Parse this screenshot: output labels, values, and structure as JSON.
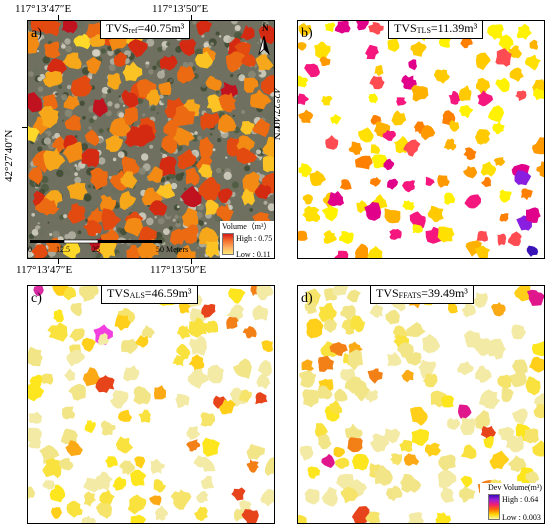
{
  "coordinates": {
    "top_left_lon": "117°13′47″E",
    "top_right_lon": "117°13′50″E",
    "bottom_left_lon": "117°13′47″E",
    "bottom_right_lon": "117°13′50″E",
    "left_lat": "42°27′40″N",
    "right_lat": "42°27′40″N"
  },
  "panels": {
    "a": {
      "label": "a)",
      "title_prefix": "TVS",
      "title_sub": "ref",
      "title_suffix": "=40.75m³",
      "legend": {
        "title": "Volume（m³）",
        "high": "High : 0.75",
        "low": "Low : 0.11"
      },
      "scale": {
        "t0": "0",
        "t1": "12.5",
        "t2": "25",
        "t3": "50 Meters"
      },
      "north": "N",
      "palette": [
        "#c1121f",
        "#d52a12",
        "#e34a10",
        "#ec6a12",
        "#f28a14",
        "#f6a71a",
        "#fbc323",
        "#ffd92a"
      ],
      "background_colors": [
        "#4d5a40",
        "#6b6e5e",
        "#8c8a78",
        "#b5b3a5",
        "#d7d3c6",
        "#3f4a33"
      ]
    },
    "b": {
      "label": "b)",
      "title_prefix": "TVS",
      "title_sub": "TLS",
      "title_suffix": "=11.39m³",
      "palette": [
        "#fff200",
        "#ffe000",
        "#ffca00",
        "#ffb100",
        "#ff9900",
        "#ff8000",
        "#ff4b52",
        "#f5177d",
        "#e0008a",
        "#8a1ee0",
        "#3a14b7"
      ]
    },
    "c": {
      "label": "c)",
      "title_prefix": "TVS",
      "title_sub": "ALS",
      "title_suffix": "=46.59m³",
      "palette": [
        "#f3eaa6",
        "#f1e588",
        "#f5e36a",
        "#f9e23d",
        "#fde61e",
        "#ffcf1a",
        "#fbaa16",
        "#f28016",
        "#e8441c",
        "#f240e0",
        "#d92aa2"
      ]
    },
    "d": {
      "label": "d)",
      "title_prefix": "TVS",
      "title_sub": "FFATS",
      "title_suffix": "=39.49m³",
      "legend": {
        "title": "Dev Volume(m³)",
        "high": "High : 0.64",
        "low": "Low : 0.003"
      },
      "palette": [
        "#f3eaa6",
        "#f1e588",
        "#f5e36a",
        "#f9e23d",
        "#fde61e",
        "#ffcf1a",
        "#fbaa16",
        "#f28016",
        "#e8441c",
        "#e0168c"
      ],
      "dev_ramp": [
        "#3b0bb6",
        "#9b1ed6",
        "#f01f72",
        "#ff6a00",
        "#ffd400",
        "#fff7a0"
      ]
    }
  }
}
